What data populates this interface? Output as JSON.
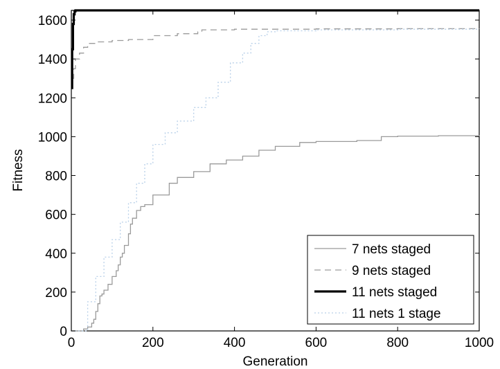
{
  "chart_data": {
    "type": "line",
    "title": "",
    "xlabel": "Generation",
    "ylabel": "Fitness",
    "xlim": [
      0,
      1000
    ],
    "ylim": [
      0,
      1650
    ],
    "xticks": [
      0,
      200,
      400,
      600,
      800,
      1000
    ],
    "yticks": [
      0,
      200,
      400,
      600,
      800,
      1000,
      1200,
      1400,
      1600
    ],
    "grid": false,
    "legend_position": "bottom-right",
    "series": [
      {
        "name": "7 nets staged",
        "color": "#9a9a9a",
        "dash": "solid",
        "width": "thin",
        "x": [
          0,
          30,
          40,
          50,
          55,
          60,
          65,
          70,
          75,
          80,
          90,
          100,
          110,
          115,
          120,
          125,
          130,
          140,
          145,
          150,
          160,
          170,
          180,
          200,
          240,
          260,
          300,
          340,
          380,
          420,
          460,
          500,
          560,
          600,
          700,
          760,
          800,
          900,
          1000
        ],
        "y": [
          0,
          10,
          20,
          40,
          60,
          100,
          140,
          180,
          190,
          210,
          240,
          280,
          310,
          340,
          380,
          400,
          440,
          500,
          550,
          580,
          620,
          640,
          650,
          700,
          760,
          790,
          820,
          860,
          880,
          900,
          930,
          950,
          970,
          975,
          980,
          1000,
          1003,
          1005,
          1007
        ]
      },
      {
        "name": "9 nets staged",
        "color": "#9a9a9a",
        "dash": "dashed",
        "width": "thin",
        "x": [
          0,
          3,
          6,
          10,
          20,
          30,
          40,
          60,
          100,
          140,
          200,
          260,
          310,
          320,
          400,
          600,
          800,
          1000
        ],
        "y": [
          1250,
          1300,
          1350,
          1400,
          1430,
          1460,
          1480,
          1488,
          1495,
          1500,
          1520,
          1530,
          1540,
          1550,
          1553,
          1555,
          1556,
          1557
        ]
      },
      {
        "name": "11 nets staged",
        "color": "#000000",
        "dash": "solid",
        "width": "thick",
        "x": [
          0,
          2,
          4,
          6,
          8,
          10,
          1000
        ],
        "y": [
          1250,
          1450,
          1580,
          1630,
          1645,
          1650,
          1650
        ]
      },
      {
        "name": "11 nets 1 stage",
        "color": "#b7cfe8",
        "dash": "dotted",
        "width": "thin",
        "x": [
          0,
          40,
          60,
          80,
          100,
          120,
          140,
          160,
          180,
          200,
          230,
          260,
          300,
          330,
          360,
          390,
          420,
          440,
          460,
          480,
          500,
          600,
          800,
          1000
        ],
        "y": [
          0,
          150,
          280,
          380,
          470,
          560,
          660,
          760,
          860,
          960,
          1020,
          1080,
          1150,
          1200,
          1280,
          1380,
          1430,
          1480,
          1520,
          1540,
          1545,
          1550,
          1553,
          1555
        ]
      }
    ]
  }
}
